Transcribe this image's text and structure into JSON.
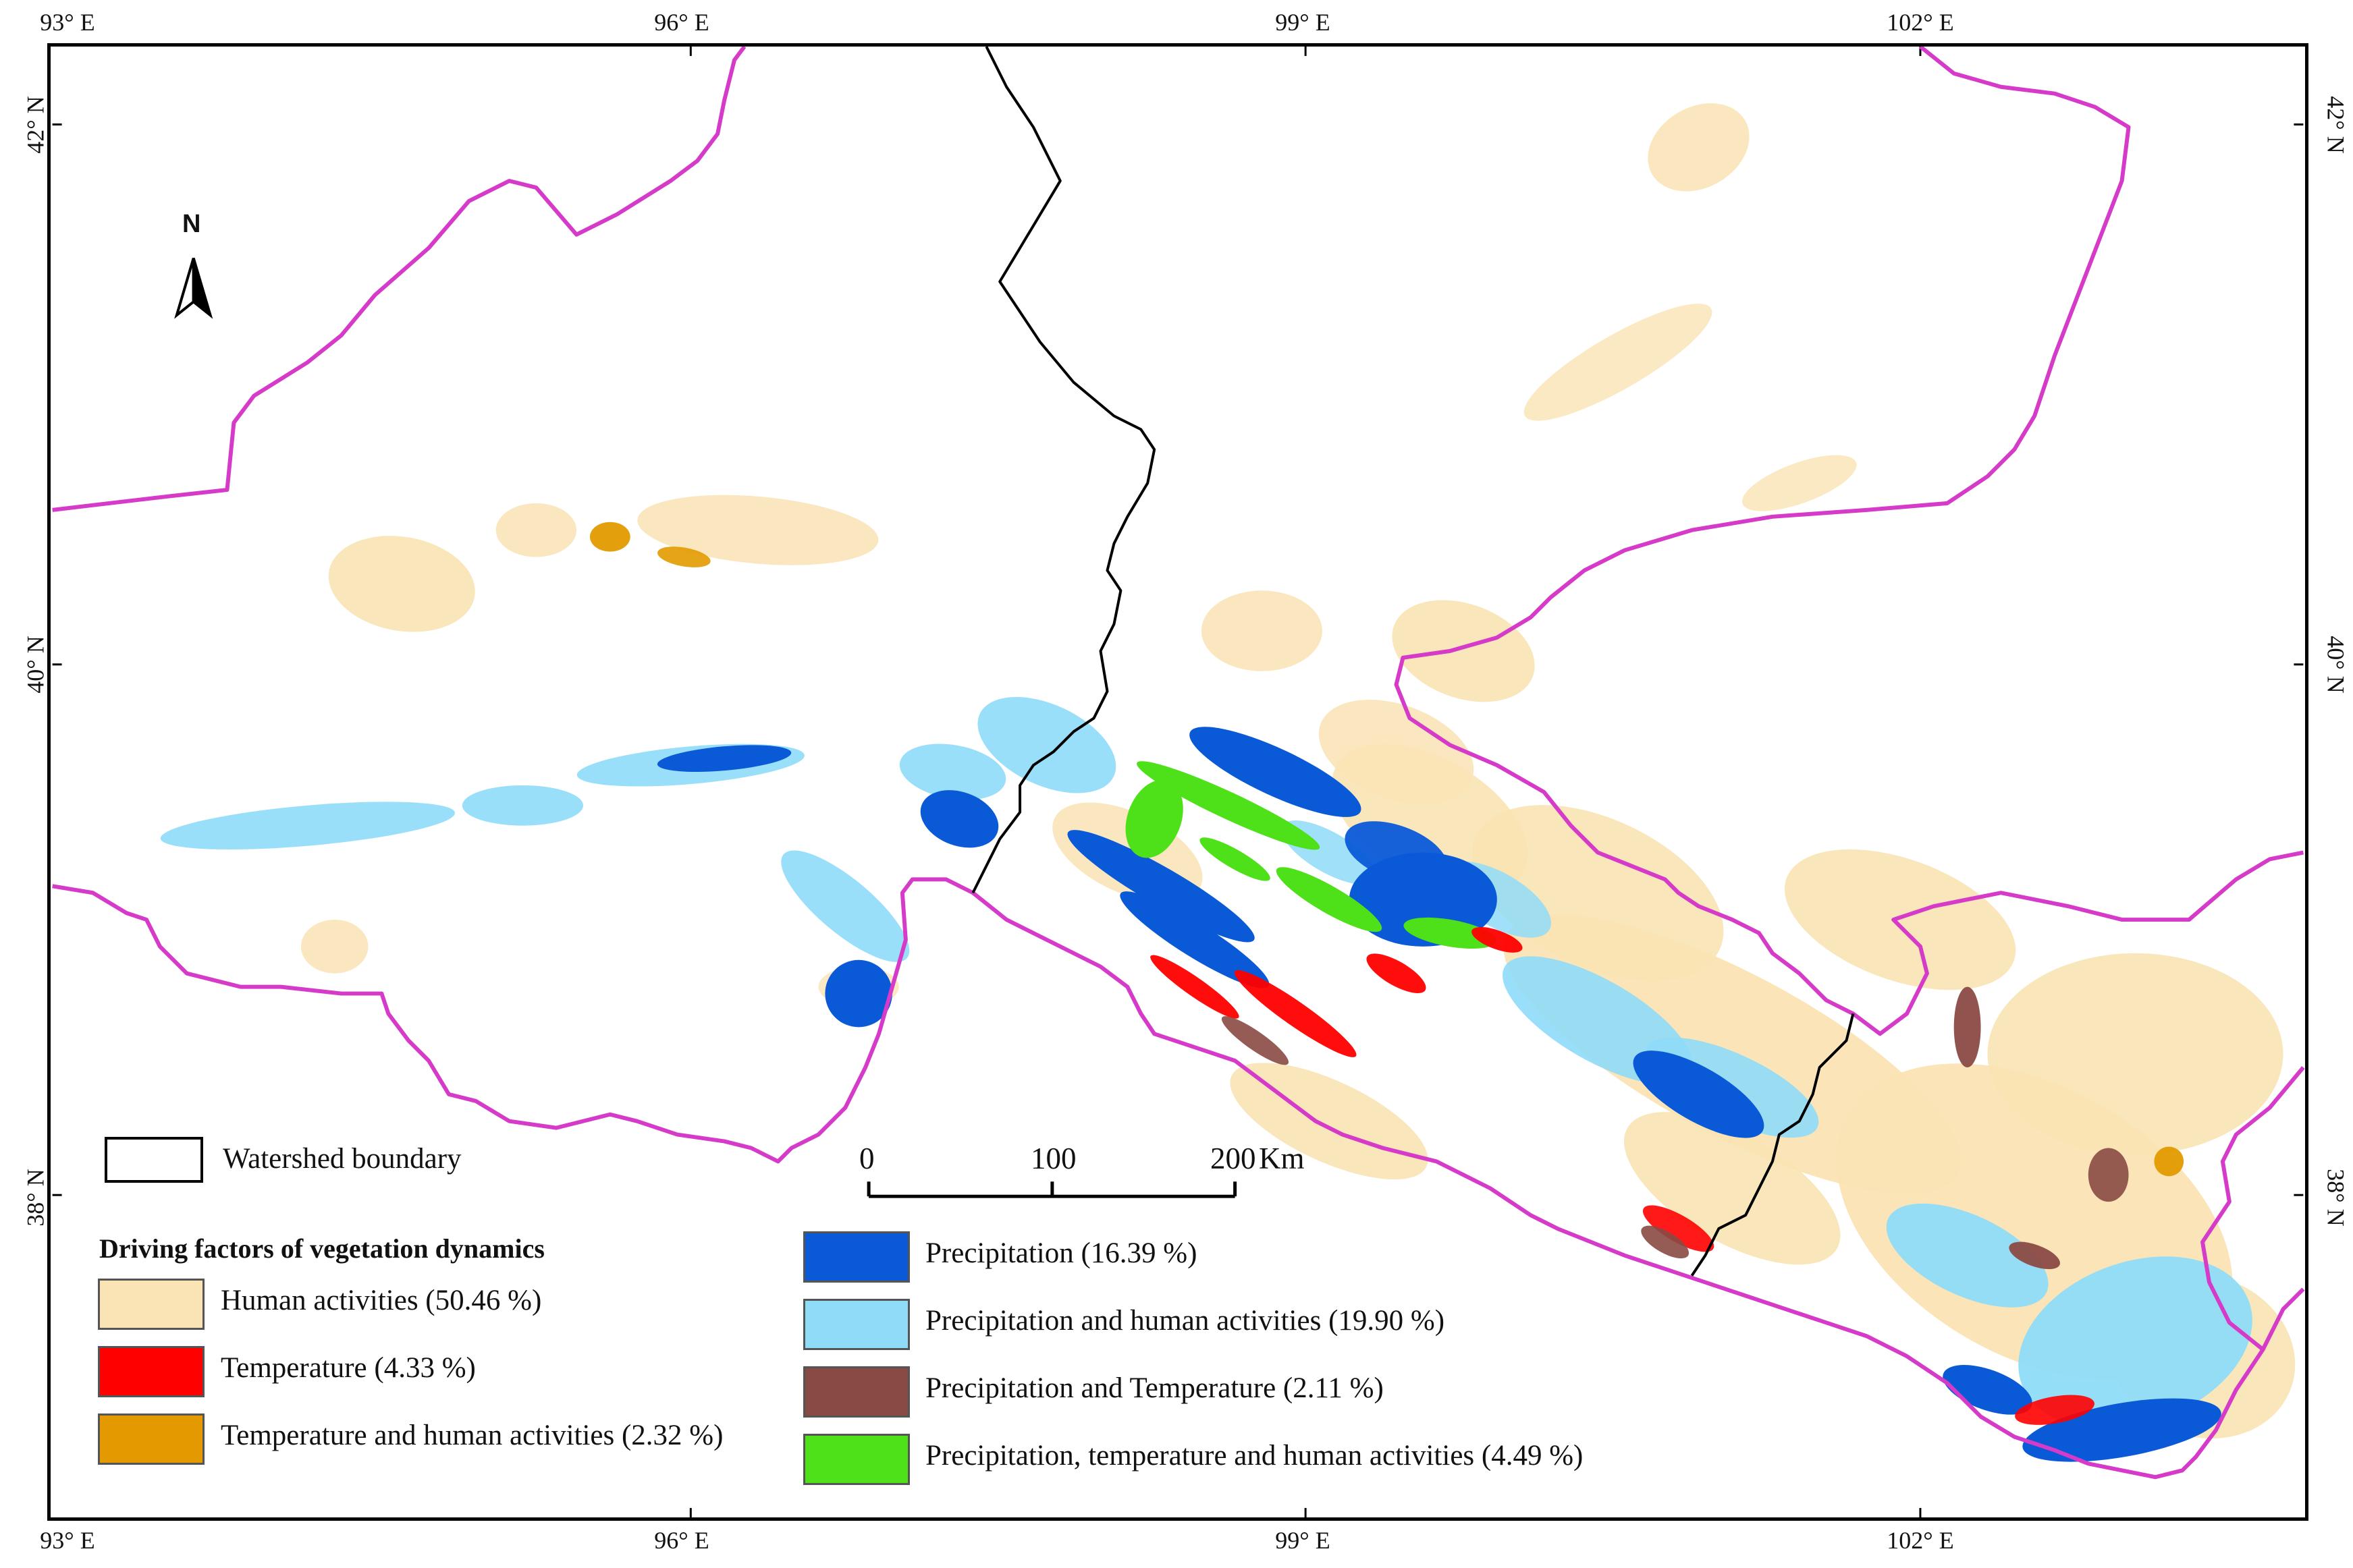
{
  "map": {
    "longitude_ticks": [
      "93° E",
      "96° E",
      "99° E",
      "102° E"
    ],
    "latitude_ticks": [
      "42° N",
      "40° N",
      "38° N"
    ],
    "north_arrow_label": "N",
    "scale_bar": {
      "labels": [
        "0",
        "100",
        "200"
      ],
      "unit": "Km"
    },
    "boundary_colors": {
      "province": "#d63ac8",
      "watershed": "#000000"
    }
  },
  "legend": {
    "watershed_label": "Watershed  boundary",
    "title": "Driving factors of vegetation dynamics",
    "items": [
      {
        "label": "Human activities (50.46 %)",
        "color": "#fae3b4"
      },
      {
        "label": "Temperature (4.33 %)",
        "color": "#ff0000"
      },
      {
        "label": "Temperature and human activities (2.32 %)",
        "color": "#e39a00"
      },
      {
        "label": "Precipitation (16.39 %)",
        "color": "#0a5ad8"
      },
      {
        "label": "Precipitation and human activities (19.90 %)",
        "color": "#8fdcf8"
      },
      {
        "label": "Precipitation and Temperature (2.11 %)",
        "color": "#8a4a44"
      },
      {
        "label": "Precipitation, temperature and human activities (4.49 %)",
        "color": "#4ee018"
      }
    ]
  }
}
